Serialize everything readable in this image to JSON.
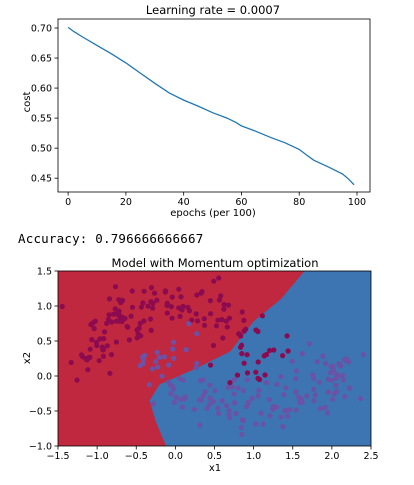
{
  "chart_data": [
    {
      "type": "line",
      "title": "Learning rate = 0.0007",
      "xlabel": "epochs (per 100)",
      "ylabel": "cost",
      "xlim": [
        -3.5,
        104.5
      ],
      "ylim": [
        0.427,
        0.715
      ],
      "x_ticks": [
        0,
        20,
        40,
        60,
        80,
        100
      ],
      "x_tick_labels": [
        "0",
        "20",
        "40",
        "60",
        "80",
        "100"
      ],
      "y_ticks": [
        0.45,
        0.5,
        0.55,
        0.6,
        0.65,
        0.7
      ],
      "y_tick_labels": [
        "0.45",
        "0.50",
        "0.55",
        "0.60",
        "0.65",
        "0.70"
      ],
      "grid": false,
      "line_color": "#1f77b4",
      "series": [
        {
          "x": [
            0,
            2,
            5,
            10,
            15,
            20,
            25,
            30,
            35,
            40,
            45,
            50,
            55,
            58,
            60,
            65,
            70,
            75,
            80,
            83,
            85,
            90,
            95,
            97,
            99
          ],
          "y": [
            0.701,
            0.694,
            0.685,
            0.671,
            0.657,
            0.642,
            0.625,
            0.608,
            0.592,
            0.58,
            0.57,
            0.559,
            0.55,
            0.543,
            0.537,
            0.528,
            0.518,
            0.509,
            0.498,
            0.487,
            0.48,
            0.469,
            0.457,
            0.449,
            0.439
          ]
        }
      ]
    },
    {
      "type": "scatter",
      "title": "Model with Momentum optimization",
      "xlabel": "x1",
      "ylabel": "x2",
      "xlim": [
        -1.5,
        2.5
      ],
      "ylim": [
        -1.0,
        1.5
      ],
      "x_ticks": [
        -1.5,
        -1.0,
        -0.5,
        0.0,
        0.5,
        1.0,
        1.5,
        2.0,
        2.5
      ],
      "x_tick_labels": [
        "−1.5",
        "−1.0",
        "−0.5",
        "0.0",
        "0.5",
        "1.0",
        "1.5",
        "2.0",
        "2.5"
      ],
      "y_ticks": [
        -1.0,
        -0.5,
        0.0,
        0.5,
        1.0,
        1.5
      ],
      "y_tick_labels": [
        "−1.0",
        "−0.5",
        "0.0",
        "0.5",
        "1.0",
        "1.5"
      ],
      "grid": false,
      "region_colors": {
        "class0": "#c0283f",
        "class1": "#3d74b2"
      },
      "point_colors": {
        "class0": "#8c0a50",
        "class1": "#6a53a6"
      },
      "decision_boundary": [
        [
          -0.12,
          -1.0
        ],
        [
          -0.25,
          -0.65
        ],
        [
          -0.33,
          -0.35
        ],
        [
          -0.2,
          -0.12
        ],
        [
          0.25,
          0.1
        ],
        [
          0.7,
          0.35
        ],
        [
          1.0,
          0.78
        ],
        [
          1.35,
          1.1
        ],
        [
          1.65,
          1.5
        ]
      ]
    }
  ],
  "accuracy_text": "Accuracy: 0.796666666667"
}
